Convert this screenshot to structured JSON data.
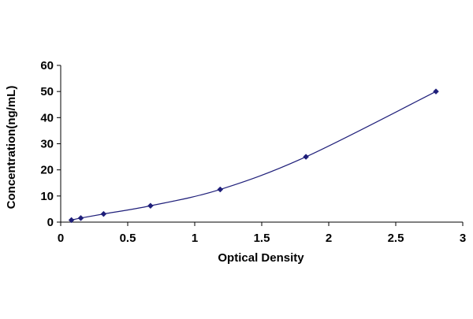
{
  "chart_data": {
    "type": "scatter",
    "xlabel": "Optical Density",
    "ylabel": "Concentration(ng/mL)",
    "xlim": [
      0,
      3
    ],
    "ylim": [
      0,
      60
    ],
    "x_ticks": [
      0,
      0.5,
      1,
      1.5,
      2,
      2.5,
      3
    ],
    "x_tick_labels": [
      "0",
      "0.5",
      "1",
      "1.5",
      "2",
      "2.5",
      "3"
    ],
    "y_ticks": [
      0,
      10,
      20,
      30,
      40,
      50,
      60
    ],
    "y_tick_labels": [
      "0",
      "10",
      "20",
      "30",
      "40",
      "50",
      "60"
    ],
    "grid": false,
    "legend": "none",
    "series": [
      {
        "marker": "diamond",
        "line": "smooth",
        "color": "#1f1f7a",
        "points": [
          {
            "x": 0.08,
            "y": 0.78
          },
          {
            "x": 0.15,
            "y": 1.56
          },
          {
            "x": 0.32,
            "y": 3.12
          },
          {
            "x": 0.67,
            "y": 6.25
          },
          {
            "x": 1.19,
            "y": 12.5
          },
          {
            "x": 1.83,
            "y": 25
          },
          {
            "x": 2.8,
            "y": 50
          }
        ]
      }
    ]
  }
}
